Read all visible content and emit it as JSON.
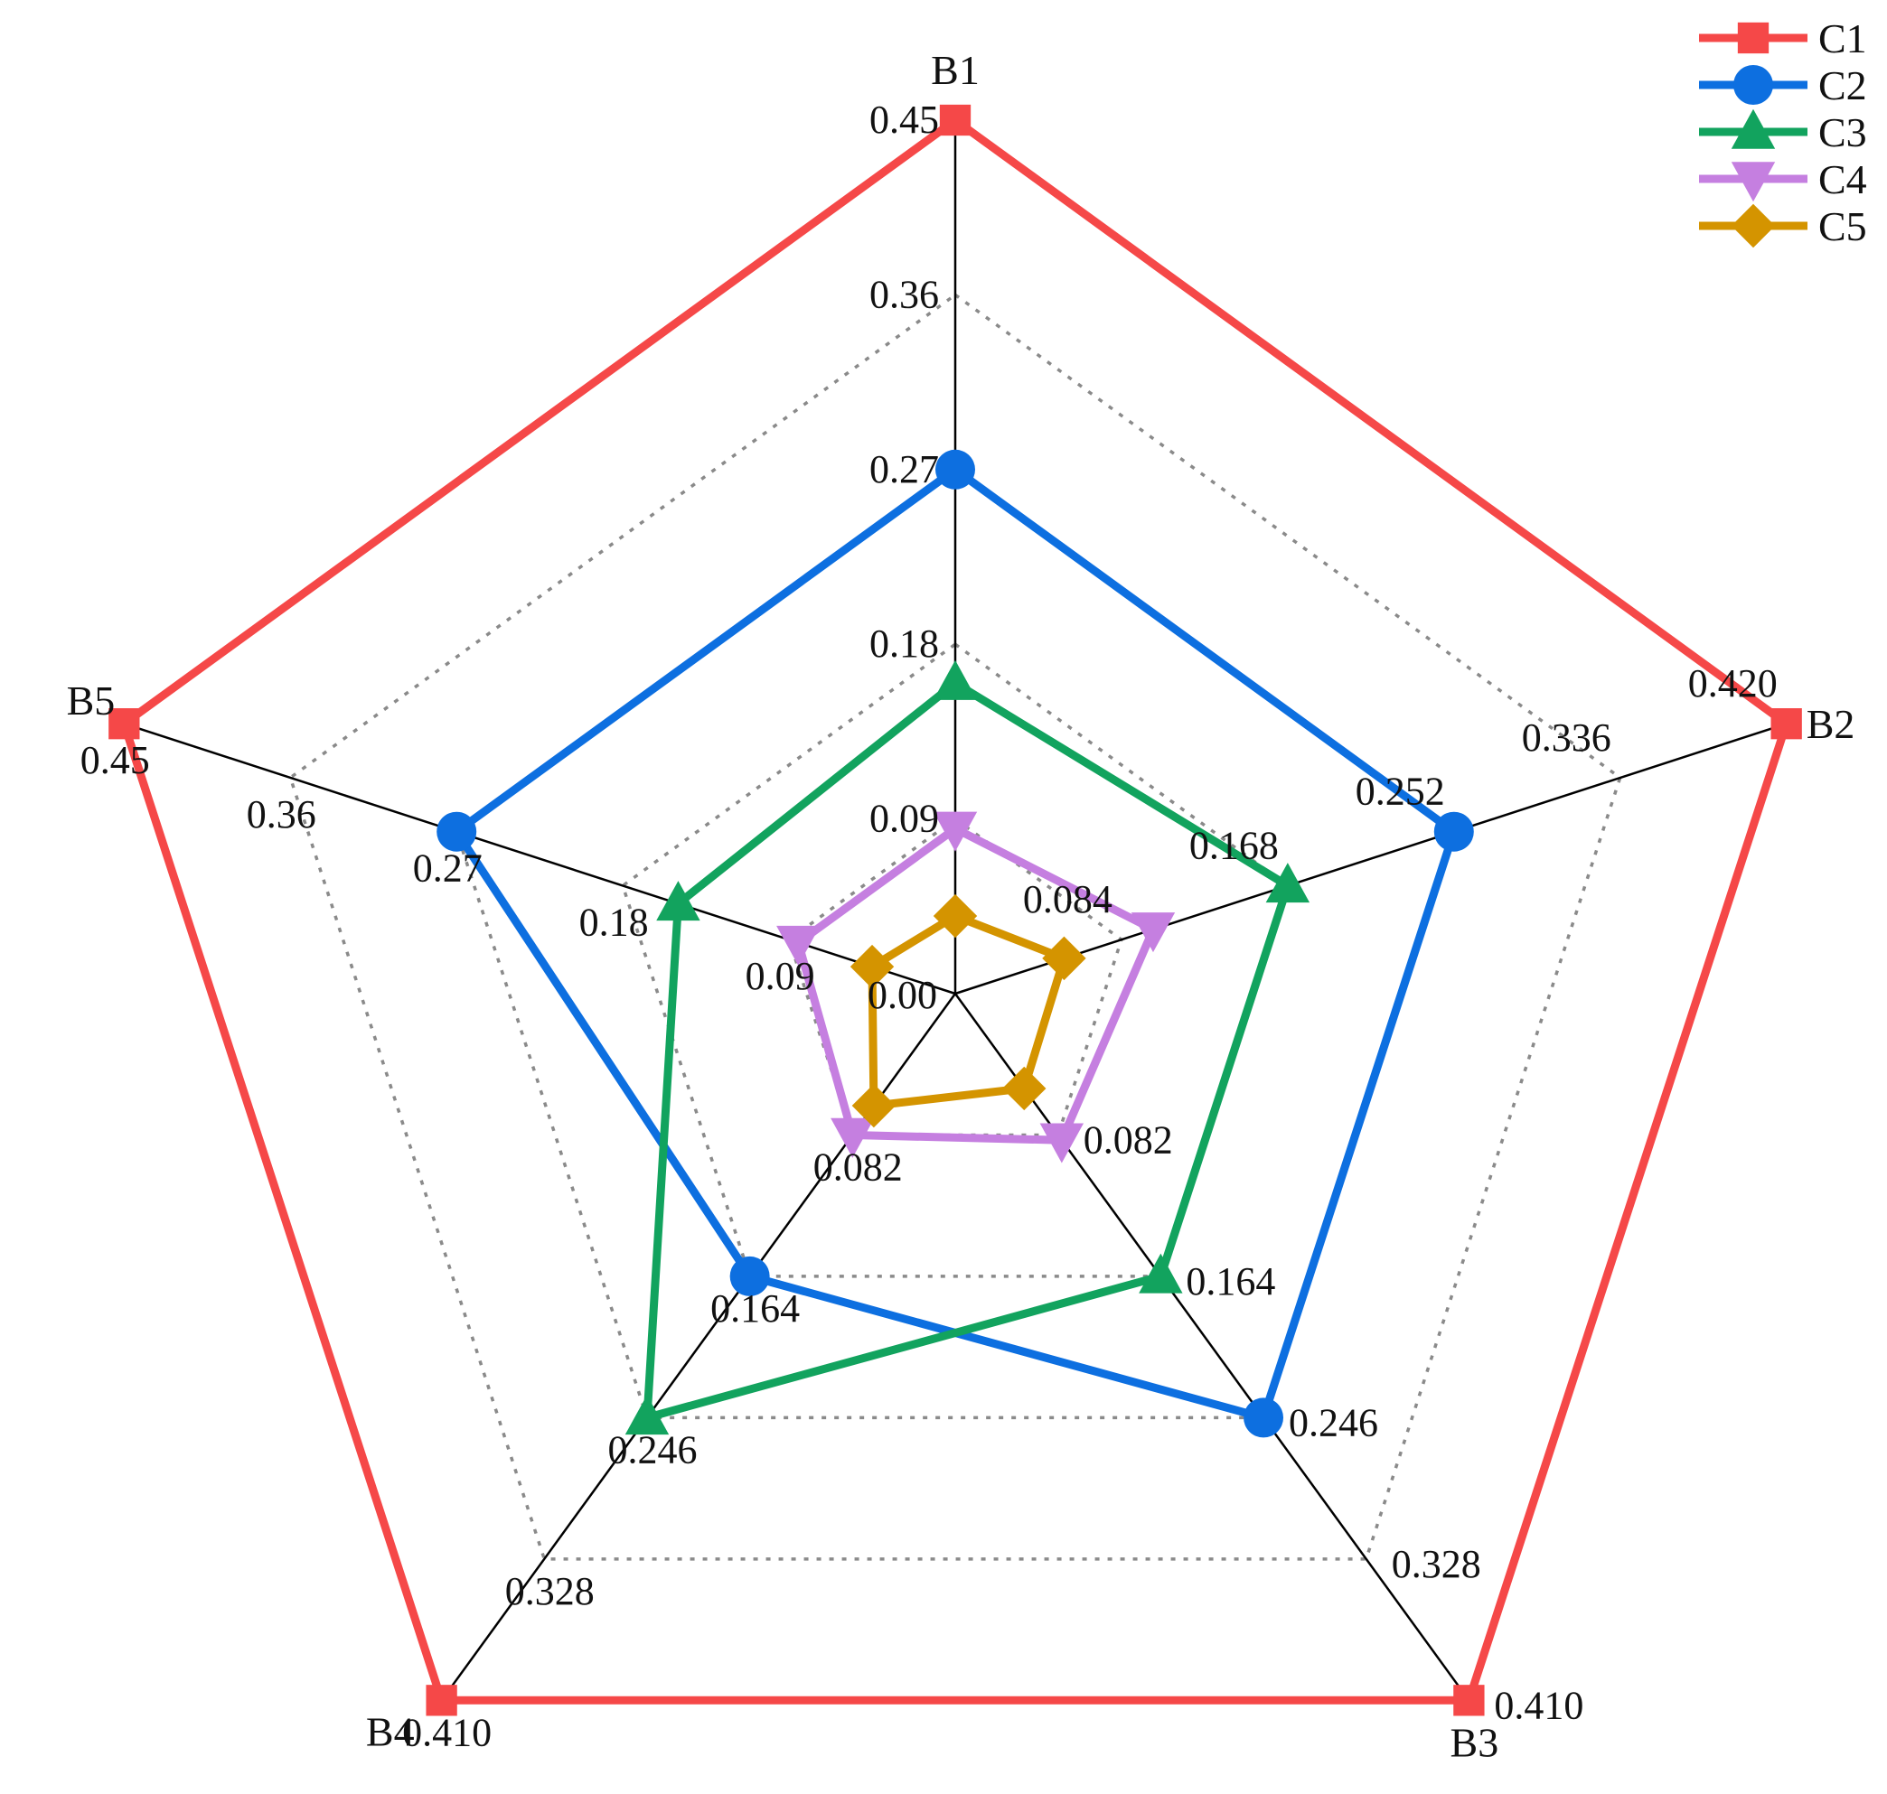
{
  "chart_data": {
    "type": "radar",
    "title": "",
    "axes": [
      {
        "name": "B1",
        "max": 0.45,
        "ticks": [
          "0.00",
          "0.09",
          "0.18",
          "0.27",
          "0.36",
          "0.45"
        ]
      },
      {
        "name": "B2",
        "max": 0.42,
        "ticks": [
          "0.084",
          "0.168",
          "0.252",
          "0.336",
          "0.420"
        ]
      },
      {
        "name": "B3",
        "max": 0.41,
        "ticks": [
          "0.082",
          "0.164",
          "0.246",
          "0.328",
          "0.410"
        ]
      },
      {
        "name": "B4",
        "max": 0.41,
        "ticks": [
          "0.082",
          "0.164",
          "0.246",
          "0.328",
          "0.410"
        ]
      },
      {
        "name": "B5",
        "max": 0.45,
        "ticks": [
          "0.09",
          "0.18",
          "0.27",
          "0.36",
          "0.45"
        ]
      }
    ],
    "series": [
      {
        "name": "C1",
        "color": "#f54848",
        "marker": "square",
        "values": [
          0.45,
          0.42,
          0.41,
          0.41,
          0.45
        ]
      },
      {
        "name": "C2",
        "color": "#0d6fe0",
        "marker": "circle",
        "values": [
          0.27,
          0.252,
          0.246,
          0.164,
          0.27
        ]
      },
      {
        "name": "C3",
        "color": "#12a35e",
        "marker": "triangle",
        "values": [
          0.16,
          0.168,
          0.164,
          0.246,
          0.15
        ]
      },
      {
        "name": "C4",
        "color": "#c57fe0",
        "marker": "triangle-down",
        "values": [
          0.085,
          0.1,
          0.085,
          0.082,
          0.085
        ]
      },
      {
        "name": "C5",
        "color": "#d49400",
        "marker": "diamond",
        "values": [
          0.04,
          0.055,
          0.055,
          0.065,
          0.045
        ]
      }
    ],
    "grid": "dotted",
    "legend_position": "top-right"
  }
}
